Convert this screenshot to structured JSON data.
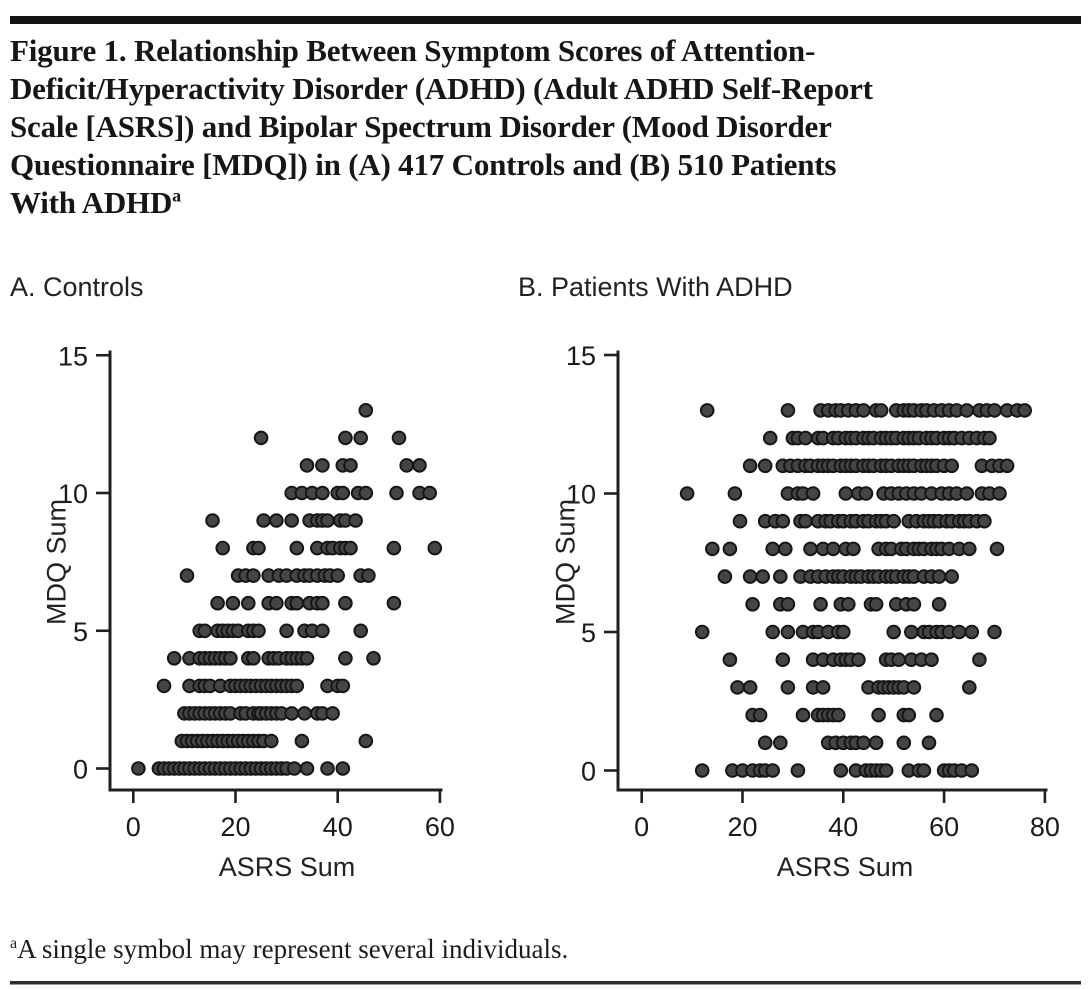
{
  "figure": {
    "title": "Figure 1. Relationship Between Symptom Scores of Attention-\nDeficit/Hyperactivity Disorder (ADHD) (Adult ADHD Self-Report\nScale [ASRS]) and Bipolar Spectrum Disorder (Mood Disorder\nQuestionnaire [MDQ]) in (A) 417 Controls and (B) 510 Patients\nWith ADHD",
    "title_superscript": "a",
    "footnote_marker": "a",
    "footnote": "A single symbol may represent several individuals."
  },
  "colors": {
    "top_bar": "#141414",
    "axis": "#231f20",
    "point_fill": "#454545",
    "point_stroke": "#161616",
    "text": "#1a1a1a"
  },
  "chart_data": [
    {
      "type": "scatter",
      "panel_label": "A. Controls",
      "xlabel": "ASRS Sum",
      "ylabel": "MDQ Sum",
      "xlim": [
        0,
        60
      ],
      "ylim": [
        0,
        15
      ],
      "x_ticks": [
        0,
        20,
        40,
        60
      ],
      "y_ticks": [
        0,
        5,
        10,
        15
      ],
      "grid": false,
      "legend": "none",
      "rows": [
        {
          "mdq": 0,
          "asrs": [
            1,
            5,
            6,
            7,
            8,
            9,
            10,
            11,
            12,
            13,
            14,
            15,
            16,
            17,
            18,
            19,
            20,
            21,
            22,
            23,
            24,
            25,
            26,
            27,
            28,
            29,
            30,
            31.5,
            34,
            38,
            41
          ]
        },
        {
          "mdq": 1,
          "asrs": [
            9.5,
            10.5,
            11.5,
            12.5,
            13.5,
            14.5,
            15.5,
            16.5,
            17.5,
            18.5,
            19.5,
            20.5,
            21.5,
            22.5,
            23.5,
            24.5,
            25.5,
            27,
            33,
            45.5
          ]
        },
        {
          "mdq": 2,
          "asrs": [
            10,
            11,
            12,
            13,
            14,
            15,
            16,
            17,
            18,
            19,
            21,
            22,
            23.5,
            24.5,
            25,
            26,
            27,
            28,
            29,
            31,
            33.5,
            36,
            37,
            39
          ]
        },
        {
          "mdq": 3,
          "asrs": [
            6,
            11,
            13,
            14,
            15,
            17,
            19,
            20,
            21,
            22,
            23,
            24,
            25,
            26,
            27,
            28,
            29,
            30,
            31,
            32,
            38,
            40,
            41
          ]
        },
        {
          "mdq": 4,
          "asrs": [
            8,
            11,
            13,
            14,
            15,
            16,
            17,
            18,
            19,
            22.5,
            23.5,
            26.5,
            27.5,
            28.5,
            30,
            31,
            32,
            33,
            34,
            41.5,
            47
          ]
        },
        {
          "mdq": 5,
          "asrs": [
            13,
            14,
            16.5,
            17.5,
            18.5,
            19.5,
            20.5,
            22.5,
            23.5,
            24.5,
            30,
            33.5,
            35,
            37,
            44.5
          ]
        },
        {
          "mdq": 6,
          "asrs": [
            16.5,
            19.5,
            22.5,
            26.5,
            28,
            31,
            32,
            34.5,
            36,
            37,
            41.5,
            51
          ]
        },
        {
          "mdq": 7,
          "asrs": [
            10.5,
            20.5,
            22,
            23.5,
            26.5,
            28.5,
            30,
            32,
            33.5,
            34.5,
            36,
            37.5,
            38.5,
            40,
            44.5,
            46
          ]
        },
        {
          "mdq": 8,
          "asrs": [
            17.5,
            23.5,
            24.5,
            32,
            36,
            38,
            39,
            40.5,
            41.5,
            42.5,
            51,
            59
          ]
        },
        {
          "mdq": 9,
          "asrs": [
            15.5,
            25.5,
            28,
            31,
            34.5,
            36,
            37,
            38,
            40.5,
            41.5,
            43.5
          ]
        },
        {
          "mdq": 10,
          "asrs": [
            31,
            33,
            35,
            37,
            40,
            41,
            44,
            45.5,
            51.5,
            56,
            58
          ]
        },
        {
          "mdq": 11,
          "asrs": [
            34,
            37,
            41,
            42.5,
            53.5,
            56
          ]
        },
        {
          "mdq": 12,
          "asrs": [
            25,
            41.5,
            44.5,
            52
          ]
        },
        {
          "mdq": 13,
          "asrs": [
            45.5
          ]
        }
      ]
    },
    {
      "type": "scatter",
      "panel_label": "B. Patients With ADHD",
      "xlabel": "ASRS Sum",
      "ylabel": "MDQ Sum",
      "xlim": [
        0,
        80
      ],
      "ylim": [
        0,
        15
      ],
      "x_ticks": [
        0,
        20,
        40,
        60,
        80
      ],
      "y_ticks": [
        0,
        5,
        10,
        15
      ],
      "grid": false,
      "legend": "none",
      "rows": [
        {
          "mdq": 0,
          "asrs": [
            12,
            18,
            20,
            22,
            23.5,
            24.5,
            26,
            31,
            39.5,
            42.5,
            44.5,
            45.5,
            46.5,
            47.5,
            48.5,
            53,
            55,
            56,
            60,
            61,
            62,
            63.5,
            65.5
          ]
        },
        {
          "mdq": 1,
          "asrs": [
            24.5,
            27.5,
            37,
            38.5,
            40,
            41.5,
            42.5,
            44,
            46.5,
            52,
            57
          ]
        },
        {
          "mdq": 2,
          "asrs": [
            22,
            23.5,
            32,
            35,
            36,
            37,
            38,
            39,
            47,
            52,
            53,
            58.5
          ]
        },
        {
          "mdq": 3,
          "asrs": [
            19,
            21.5,
            29,
            34,
            36,
            45,
            47,
            48,
            49,
            50,
            51,
            52,
            54,
            65
          ]
        },
        {
          "mdq": 4,
          "asrs": [
            17.5,
            28,
            34,
            36,
            38,
            39.5,
            40.5,
            41.5,
            43,
            48.5,
            49.5,
            51,
            53.5,
            55.5,
            57.5,
            67
          ]
        },
        {
          "mdq": 5,
          "asrs": [
            12,
            26,
            29,
            32,
            34,
            35,
            37,
            39,
            40,
            50,
            53.5,
            56,
            57,
            58.5,
            59.5,
            61,
            63,
            65.5,
            70
          ]
        },
        {
          "mdq": 6,
          "asrs": [
            22,
            27.5,
            29,
            35.5,
            39.5,
            41,
            45.5,
            46.5,
            50.5,
            52.5,
            54,
            59
          ]
        },
        {
          "mdq": 7,
          "asrs": [
            16.5,
            21.5,
            24,
            27.5,
            31.5,
            33.5,
            35,
            36.5,
            38,
            39,
            40,
            41.5,
            42.5,
            43.5,
            45,
            46,
            47,
            48.5,
            49.5,
            50.5,
            52,
            53,
            54,
            56,
            57.5,
            59,
            61.5
          ]
        },
        {
          "mdq": 8,
          "asrs": [
            14,
            17.5,
            26,
            28.5,
            33.5,
            36,
            38,
            40.5,
            42,
            47,
            48.5,
            49.5,
            51.5,
            52.5,
            54,
            55,
            56,
            57.5,
            58.5,
            59.5,
            61,
            63,
            65,
            70.5
          ]
        },
        {
          "mdq": 9,
          "asrs": [
            19.5,
            24.5,
            26.5,
            28,
            31.5,
            32.5,
            35,
            36.5,
            37.5,
            39,
            40,
            41.5,
            42.5,
            44,
            45,
            46.5,
            47.5,
            48.5,
            50,
            53,
            54.5,
            56,
            57,
            58,
            59,
            60.5,
            61.5,
            63,
            64,
            65,
            66.5,
            68
          ]
        },
        {
          "mdq": 10,
          "asrs": [
            9,
            18.5,
            29,
            31,
            32,
            34,
            40.5,
            43,
            44.5,
            48,
            49.5,
            51,
            52.5,
            54,
            55.5,
            57.5,
            59.5,
            61,
            62.5,
            64.5,
            67.5,
            69,
            71
          ]
        },
        {
          "mdq": 11,
          "asrs": [
            21.5,
            24.5,
            28,
            29.5,
            31,
            32.5,
            33.5,
            35,
            36,
            37,
            38,
            39.5,
            40.5,
            41.5,
            42.5,
            44,
            45,
            46,
            47.5,
            48.5,
            49.5,
            51,
            52,
            53,
            54,
            55.5,
            56.5,
            57.5,
            58.5,
            60,
            61.5,
            67.5,
            69.5,
            71,
            72.5
          ]
        },
        {
          "mdq": 12,
          "asrs": [
            25.5,
            30,
            31,
            32.5,
            35,
            36,
            38,
            39,
            40.5,
            41.5,
            42.5,
            44,
            45,
            46,
            47.5,
            48.5,
            49.5,
            50.5,
            52,
            53,
            54,
            55,
            56.5,
            57.5,
            58.5,
            60,
            61,
            62,
            63.5,
            65,
            66.5,
            68,
            69
          ]
        },
        {
          "mdq": 13,
          "asrs": [
            13,
            29,
            35.5,
            37,
            38.5,
            39.5,
            41,
            42.5,
            44,
            46.5,
            47.5,
            50.5,
            52,
            53,
            54,
            55.5,
            56.5,
            58,
            59.5,
            61,
            62.5,
            64.5,
            67,
            68.5,
            70,
            72.5,
            74.5,
            76
          ]
        }
      ]
    }
  ]
}
